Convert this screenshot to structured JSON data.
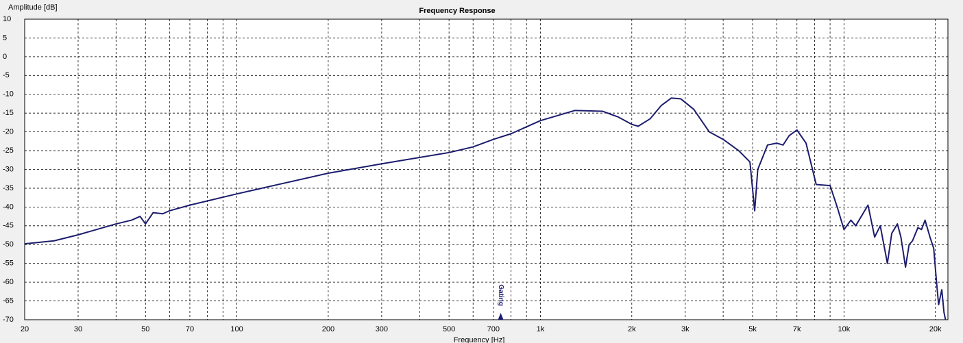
{
  "chart_data": {
    "type": "line",
    "title": "Frequency Response",
    "ylabel": "Amplitude [dB]",
    "xlabel": "Frequency [Hz]",
    "xscale": "log",
    "grid": true,
    "xlim": [
      20,
      22000
    ],
    "ylim": [
      -70,
      10
    ],
    "yticks": [
      10,
      5,
      0,
      -5,
      -10,
      -15,
      -20,
      -25,
      -30,
      -35,
      -40,
      -45,
      -50,
      -55,
      -60,
      -65,
      -70
    ],
    "xticks": [
      20,
      30,
      50,
      70,
      100,
      200,
      300,
      500,
      700,
      {
        "value": 1000,
        "label": "1k"
      },
      {
        "value": 2000,
        "label": "2k"
      },
      {
        "value": 3000,
        "label": "3k"
      },
      {
        "value": 5000,
        "label": "5k"
      },
      {
        "value": 7000,
        "label": "7k"
      },
      {
        "value": 10000,
        "label": "10k"
      },
      {
        "value": 20000,
        "label": "20k"
      }
    ],
    "x_minor_ticks": [
      40,
      60,
      80,
      90,
      400,
      600,
      800,
      900,
      4000,
      6000,
      8000,
      9000
    ],
    "annotation": {
      "text": "Gating",
      "x": 740
    },
    "series": [
      {
        "color": "#1c1c6e",
        "x": [
          20,
          25,
          30,
          40,
          45,
          48,
          50,
          53,
          57,
          60,
          70,
          100,
          200,
          300,
          500,
          600,
          700,
          800,
          1000,
          1300,
          1600,
          1800,
          2000,
          2100,
          2300,
          2500,
          2700,
          2900,
          3200,
          3600,
          4000,
          4500,
          4900,
          5080,
          5200,
          5600,
          6000,
          6300,
          6600,
          7000,
          7500,
          8100,
          9000,
          9500,
          10000,
          10540,
          10930,
          12000,
          12620,
          13170,
          13900,
          14370,
          15000,
          15400,
          15950,
          16390,
          16820,
          17520,
          18000,
          18500,
          19200,
          19750,
          20180,
          20500,
          21000,
          21350,
          21600
        ],
        "values": [
          -49.8,
          -49,
          -47.4,
          -44.5,
          -43.5,
          -42.5,
          -44.5,
          -41.5,
          -41.8,
          -41,
          -39.5,
          -36.5,
          -31,
          -28.5,
          -25.5,
          -24,
          -22,
          -20.5,
          -17,
          -14.3,
          -14.5,
          -16,
          -18,
          -18.5,
          -16.5,
          -13,
          -11,
          -11.2,
          -14,
          -20,
          -22,
          -25,
          -28,
          -41,
          -30,
          -23.5,
          -23,
          -23.5,
          -21,
          -19.5,
          -23,
          -34,
          -34.3,
          -40,
          -46,
          -43.5,
          -45,
          -39.5,
          -48,
          -45,
          -55,
          -47,
          -44.5,
          -48,
          -56,
          -50,
          -49,
          -45.5,
          -46,
          -43.5,
          -48,
          -51,
          -60,
          -66,
          -62,
          -68,
          -70
        ]
      }
    ]
  }
}
